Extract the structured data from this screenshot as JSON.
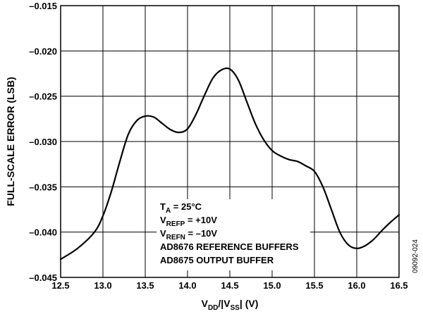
{
  "chart_data": {
    "type": "line",
    "xlabel": {
      "main": "V",
      "sub1": "DD",
      "mid": "/|V",
      "sub2": "SS",
      "end": "| (V)"
    },
    "ylabel": "FULL-SCALE ERROR (LSB)",
    "xlim": [
      12.5,
      16.5
    ],
    "ylim": [
      -0.045,
      -0.015
    ],
    "x_ticks": [
      12.5,
      13.0,
      13.5,
      14.0,
      14.5,
      15.0,
      15.5,
      16.0,
      16.5
    ],
    "x_tick_labels": [
      "12.5",
      "13.0",
      "13.5",
      "14.0",
      "14.5",
      "15.0",
      "15.5",
      "16.0",
      "16.5"
    ],
    "y_ticks": [
      -0.015,
      -0.02,
      -0.025,
      -0.03,
      -0.035,
      -0.04,
      -0.045
    ],
    "y_tick_labels": [
      "–0.015",
      "–0.020",
      "–0.025",
      "–0.030",
      "–0.035",
      "–0.040",
      "–0.045"
    ],
    "grid": true,
    "series": [
      {
        "x": [
          12.5,
          12.7,
          12.9,
          13.0,
          13.1,
          13.2,
          13.3,
          13.4,
          13.5,
          13.6,
          13.7,
          13.8,
          13.9,
          14.0,
          14.1,
          14.2,
          14.3,
          14.4,
          14.5,
          14.6,
          14.7,
          14.8,
          14.9,
          15.0,
          15.1,
          15.2,
          15.3,
          15.4,
          15.5,
          15.6,
          15.7,
          15.8,
          15.9,
          16.0,
          16.1,
          16.2,
          16.3,
          16.4,
          16.5
        ],
        "y": [
          -0.043,
          -0.0418,
          -0.04,
          -0.0382,
          -0.0355,
          -0.0322,
          -0.0292,
          -0.0277,
          -0.0272,
          -0.0273,
          -0.028,
          -0.0287,
          -0.029,
          -0.0286,
          -0.027,
          -0.0249,
          -0.023,
          -0.0221,
          -0.022,
          -0.0232,
          -0.0256,
          -0.028,
          -0.0298,
          -0.031,
          -0.0316,
          -0.032,
          -0.0322,
          -0.0327,
          -0.0333,
          -0.035,
          -0.0375,
          -0.04,
          -0.0414,
          -0.0418,
          -0.0415,
          -0.0408,
          -0.0398,
          -0.0389,
          -0.0381
        ]
      }
    ],
    "annotation": [
      {
        "main": "T",
        "sub": "A",
        "rest": " = 25°C"
      },
      {
        "main": "V",
        "sub": "REFP",
        "rest": " = +10V"
      },
      {
        "main": "V",
        "sub": "REFN",
        "rest": " = –10V"
      },
      {
        "main": "AD8676 REFERENCE BUFFERS",
        "sub": "",
        "rest": ""
      },
      {
        "main": "AD8675 OUTPUT BUFFER",
        "sub": "",
        "rest": ""
      }
    ],
    "figure_id": "09092-024"
  }
}
